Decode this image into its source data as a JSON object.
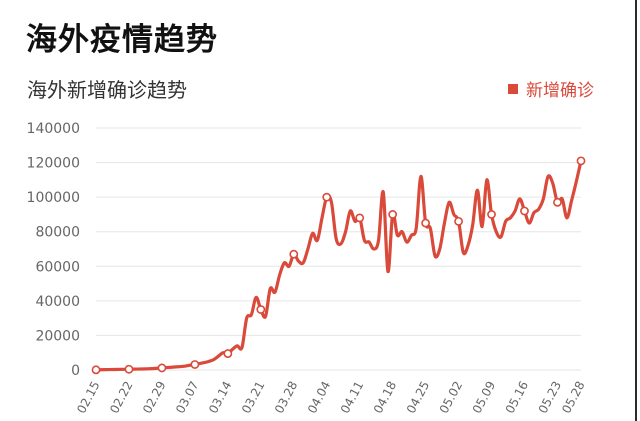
{
  "page": {
    "title": "海外疫情趋势"
  },
  "chart_data": {
    "type": "line",
    "title": "海外新增确诊趋势",
    "xlabel": "",
    "ylabel": "",
    "ylim": [
      0,
      140000
    ],
    "yticks": [
      0,
      20000,
      40000,
      60000,
      80000,
      100000,
      120000,
      140000
    ],
    "grid": true,
    "legend_position": "top-right",
    "x_tick_labels": [
      "02.15",
      "02.22",
      "02.29",
      "03.07",
      "03.14",
      "03.21",
      "03.28",
      "04.04",
      "04.11",
      "04.18",
      "04.25",
      "05.02",
      "05.09",
      "05.16",
      "05.23",
      "05.28"
    ],
    "colors": {
      "series": "#d94a3a",
      "grid": "#e6e6e6",
      "axis_text": "#666666"
    },
    "series": [
      {
        "name": "新增确诊",
        "x": [
          "02.15",
          "02.16",
          "02.17",
          "02.18",
          "02.19",
          "02.20",
          "02.21",
          "02.22",
          "02.23",
          "02.24",
          "02.25",
          "02.26",
          "02.27",
          "02.28",
          "02.29",
          "03.01",
          "03.02",
          "03.03",
          "03.04",
          "03.05",
          "03.06",
          "03.07",
          "03.08",
          "03.09",
          "03.10",
          "03.11",
          "03.12",
          "03.13",
          "03.14",
          "03.15",
          "03.16",
          "03.17",
          "03.18",
          "03.19",
          "03.20",
          "03.21",
          "03.22",
          "03.23",
          "03.24",
          "03.25",
          "03.26",
          "03.27",
          "03.28",
          "03.29",
          "03.30",
          "03.31",
          "04.01",
          "04.02",
          "04.03",
          "04.04",
          "04.05",
          "04.06",
          "04.07",
          "04.08",
          "04.09",
          "04.10",
          "04.11",
          "04.12",
          "04.13",
          "04.14",
          "04.15",
          "04.16",
          "04.17",
          "04.18",
          "04.19",
          "04.20",
          "04.21",
          "04.22",
          "04.23",
          "04.24",
          "04.25",
          "04.26",
          "04.27",
          "04.28",
          "04.29",
          "04.30",
          "05.01",
          "05.02",
          "05.03",
          "05.04",
          "05.05",
          "05.06",
          "05.07",
          "05.08",
          "05.09",
          "05.10",
          "05.11",
          "05.12",
          "05.13",
          "05.14",
          "05.15",
          "05.16",
          "05.17",
          "05.18",
          "05.19",
          "05.20",
          "05.21",
          "05.22",
          "05.23",
          "05.24",
          "05.25",
          "05.26",
          "05.27",
          "05.28"
        ],
        "values": [
          100,
          150,
          200,
          250,
          300,
          350,
          400,
          450,
          500,
          550,
          600,
          700,
          800,
          1000,
          1200,
          1400,
          1600,
          1800,
          2000,
          2300,
          2800,
          3200,
          3700,
          4300,
          5000,
          6000,
          8000,
          10000,
          9500,
          12000,
          14000,
          13000,
          30000,
          32000,
          42000,
          35000,
          31000,
          47000,
          45000,
          55000,
          62000,
          60000,
          67000,
          63000,
          62000,
          70000,
          79000,
          75000,
          88000,
          100000,
          97000,
          76000,
          73000,
          80000,
          92000,
          86000,
          88000,
          75000,
          74000,
          70000,
          75000,
          103000,
          57000,
          90000,
          78000,
          80000,
          74000,
          78000,
          82000,
          112000,
          85000,
          82000,
          66000,
          70000,
          85000,
          97000,
          90000,
          86000,
          68000,
          72000,
          84000,
          104000,
          83000,
          110000,
          90000,
          80000,
          77000,
          86000,
          88000,
          92000,
          99000,
          92000,
          85000,
          91000,
          93000,
          99000,
          112000,
          108000,
          97000,
          99000,
          88000,
          98000,
          109000,
          121000
        ],
        "marked_points": [
          "02.15",
          "02.22",
          "02.29",
          "03.07",
          "03.14",
          "03.21",
          "03.28",
          "04.04",
          "04.11",
          "04.18",
          "04.25",
          "05.02",
          "05.09",
          "05.16",
          "05.23",
          "05.28"
        ]
      }
    ]
  }
}
